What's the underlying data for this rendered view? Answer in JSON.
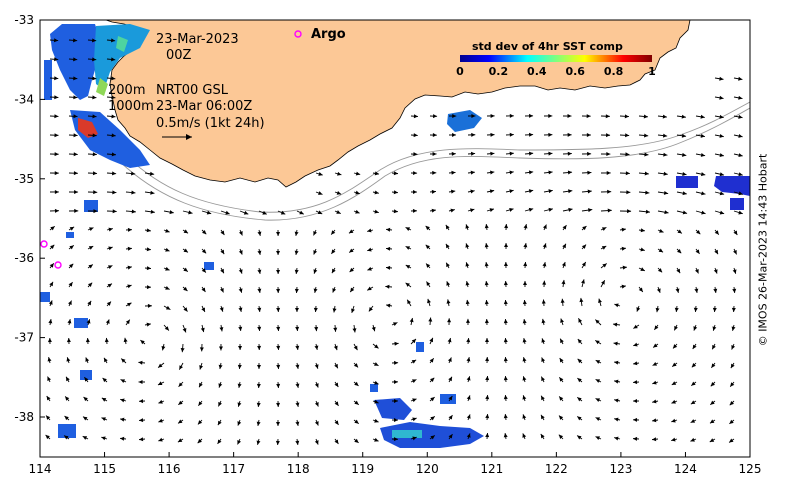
{
  "map": {
    "date_line": "23-Mar-2023",
    "time_line": "00Z",
    "iso_200": "200m",
    "product": "NRT00 GSL",
    "iso_1000": "1000m",
    "product_time": "23-Mar 06:00Z",
    "scale_label": "0.5m/s (1kt 24h)",
    "argo_label": "Argo",
    "colorbar_title": "std dev of 4hr SST comp",
    "colorbar_ticks": [
      "0",
      "0.2",
      "0.4",
      "0.6",
      "0.8",
      "1"
    ],
    "x_ticks": [
      "114",
      "115",
      "116",
      "117",
      "118",
      "119",
      "120",
      "121",
      "122",
      "123",
      "124",
      "125"
    ],
    "y_ticks": [
      "-33",
      "-34",
      "-35",
      "-36",
      "-37",
      "-38"
    ],
    "credit": "© IMOS 26-Mar-2023 14:43 Hobart"
  },
  "colors": {
    "land": "#fcc896",
    "argo_marker": "#ff00ff",
    "arrow": "#000000",
    "isobath": "#999999"
  }
}
